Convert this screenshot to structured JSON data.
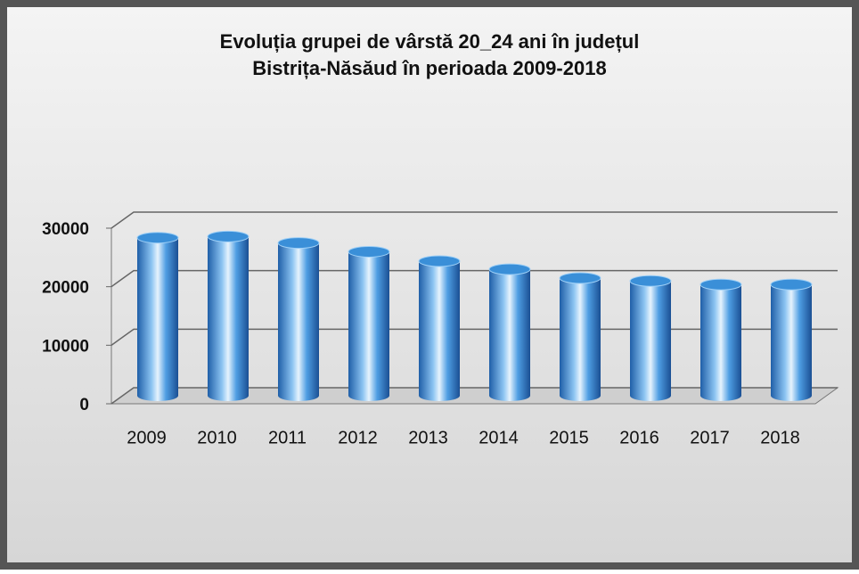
{
  "chart_data": {
    "type": "bar",
    "title": [
      "Evoluția grupei de vârstă 20_24 ani în județul",
      "Bistrița-Năsăud în perioada 2009-2018"
    ],
    "categories": [
      "2009",
      "2010",
      "2011",
      "2012",
      "2013",
      "2014",
      "2015",
      "2016",
      "2017",
      "2018"
    ],
    "values": [
      27000,
      27200,
      26100,
      24600,
      23000,
      21600,
      20100,
      19600,
      19000,
      19000
    ],
    "color": "#3a8fd8",
    "ylim": [
      0,
      30000
    ],
    "yticks": [
      0,
      10000,
      20000,
      30000
    ],
    "grid": true
  }
}
